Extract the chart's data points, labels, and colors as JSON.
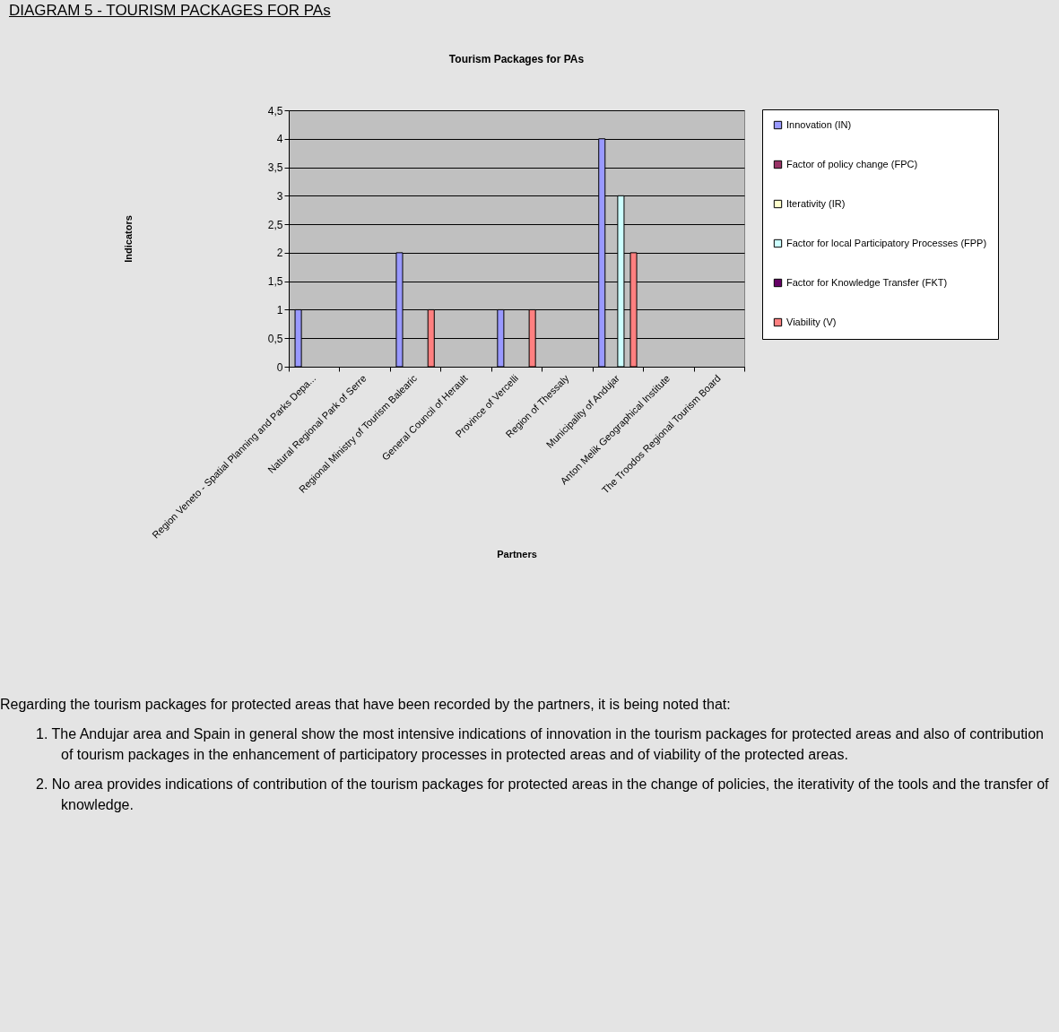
{
  "chart_data": {
    "type": "bar",
    "title": "Tourism Packages for PAs",
    "xlabel": "Partners",
    "ylabel": "Indicators",
    "categories": [
      "Region Veneto - Spatial Planning and Parks Depa...",
      "Natural Regional Park of Serre",
      "Regional Ministry of Tourism Balearic",
      "General Council of Herault",
      "Province of Vercelli",
      "Region of Thessaly",
      "Municipality of Andujar",
      "Anton Melik Geographical Institute",
      "The Troodos Regional Tourism Board"
    ],
    "series": [
      {
        "name": "Innovation (IN)",
        "color": "#9999ff",
        "values": [
          1,
          0,
          2,
          0,
          1,
          0,
          4,
          0,
          0
        ]
      },
      {
        "name": "Factor of policy change (FPC)",
        "color": "#993366",
        "values": [
          0,
          0,
          0,
          0,
          0,
          0,
          0,
          0,
          0
        ]
      },
      {
        "name": "Iterativity (IR)",
        "color": "#ffffcc",
        "values": [
          0,
          0,
          0,
          0,
          0,
          0,
          0,
          0,
          0
        ]
      },
      {
        "name": "Factor for local Participatory Processes (FPP)",
        "color": "#ccffff",
        "values": [
          0,
          0,
          0,
          0,
          0,
          0,
          3,
          0,
          0
        ]
      },
      {
        "name": "Factor for Knowledge Transfer (FKT)",
        "color": "#660066",
        "values": [
          0,
          0,
          0,
          0,
          0,
          0,
          0,
          0,
          0
        ]
      },
      {
        "name": "Viability (V)",
        "color": "#ff8080",
        "values": [
          0,
          0,
          1,
          0,
          1,
          0,
          2,
          0,
          0
        ]
      }
    ],
    "ylim": [
      0,
      4.5
    ],
    "yticks": [
      0,
      {
        "value": 0.5,
        "label": "0,5"
      },
      1,
      {
        "value": 1.5,
        "label": "1,5"
      },
      2,
      {
        "value": 2.5,
        "label": "2,5"
      },
      3,
      {
        "value": 3.5,
        "label": "3,5"
      },
      4,
      {
        "value": 4.5,
        "label": "4,5"
      }
    ],
    "grid": "y",
    "legend": "right",
    "annotations": [
      "DIAGRAM 5 - TOURISM PACKAGES FOR PAs",
      "Regarding the tourism packages for protected areas that have been recorded by the partners, it is being noted that:",
      "1. The Andujar area and Spain in general show the most intensive indications of innovation in the tourism packages for protected areas and also of contribution of tourism packages in the enhancement of participatory processes in protected areas and of viability of the protected areas.",
      "2. No area provides indications of contribution of the tourism packages for protected areas in the change of policies, the iterativity of the tools and the transfer of knowledge."
    ]
  }
}
